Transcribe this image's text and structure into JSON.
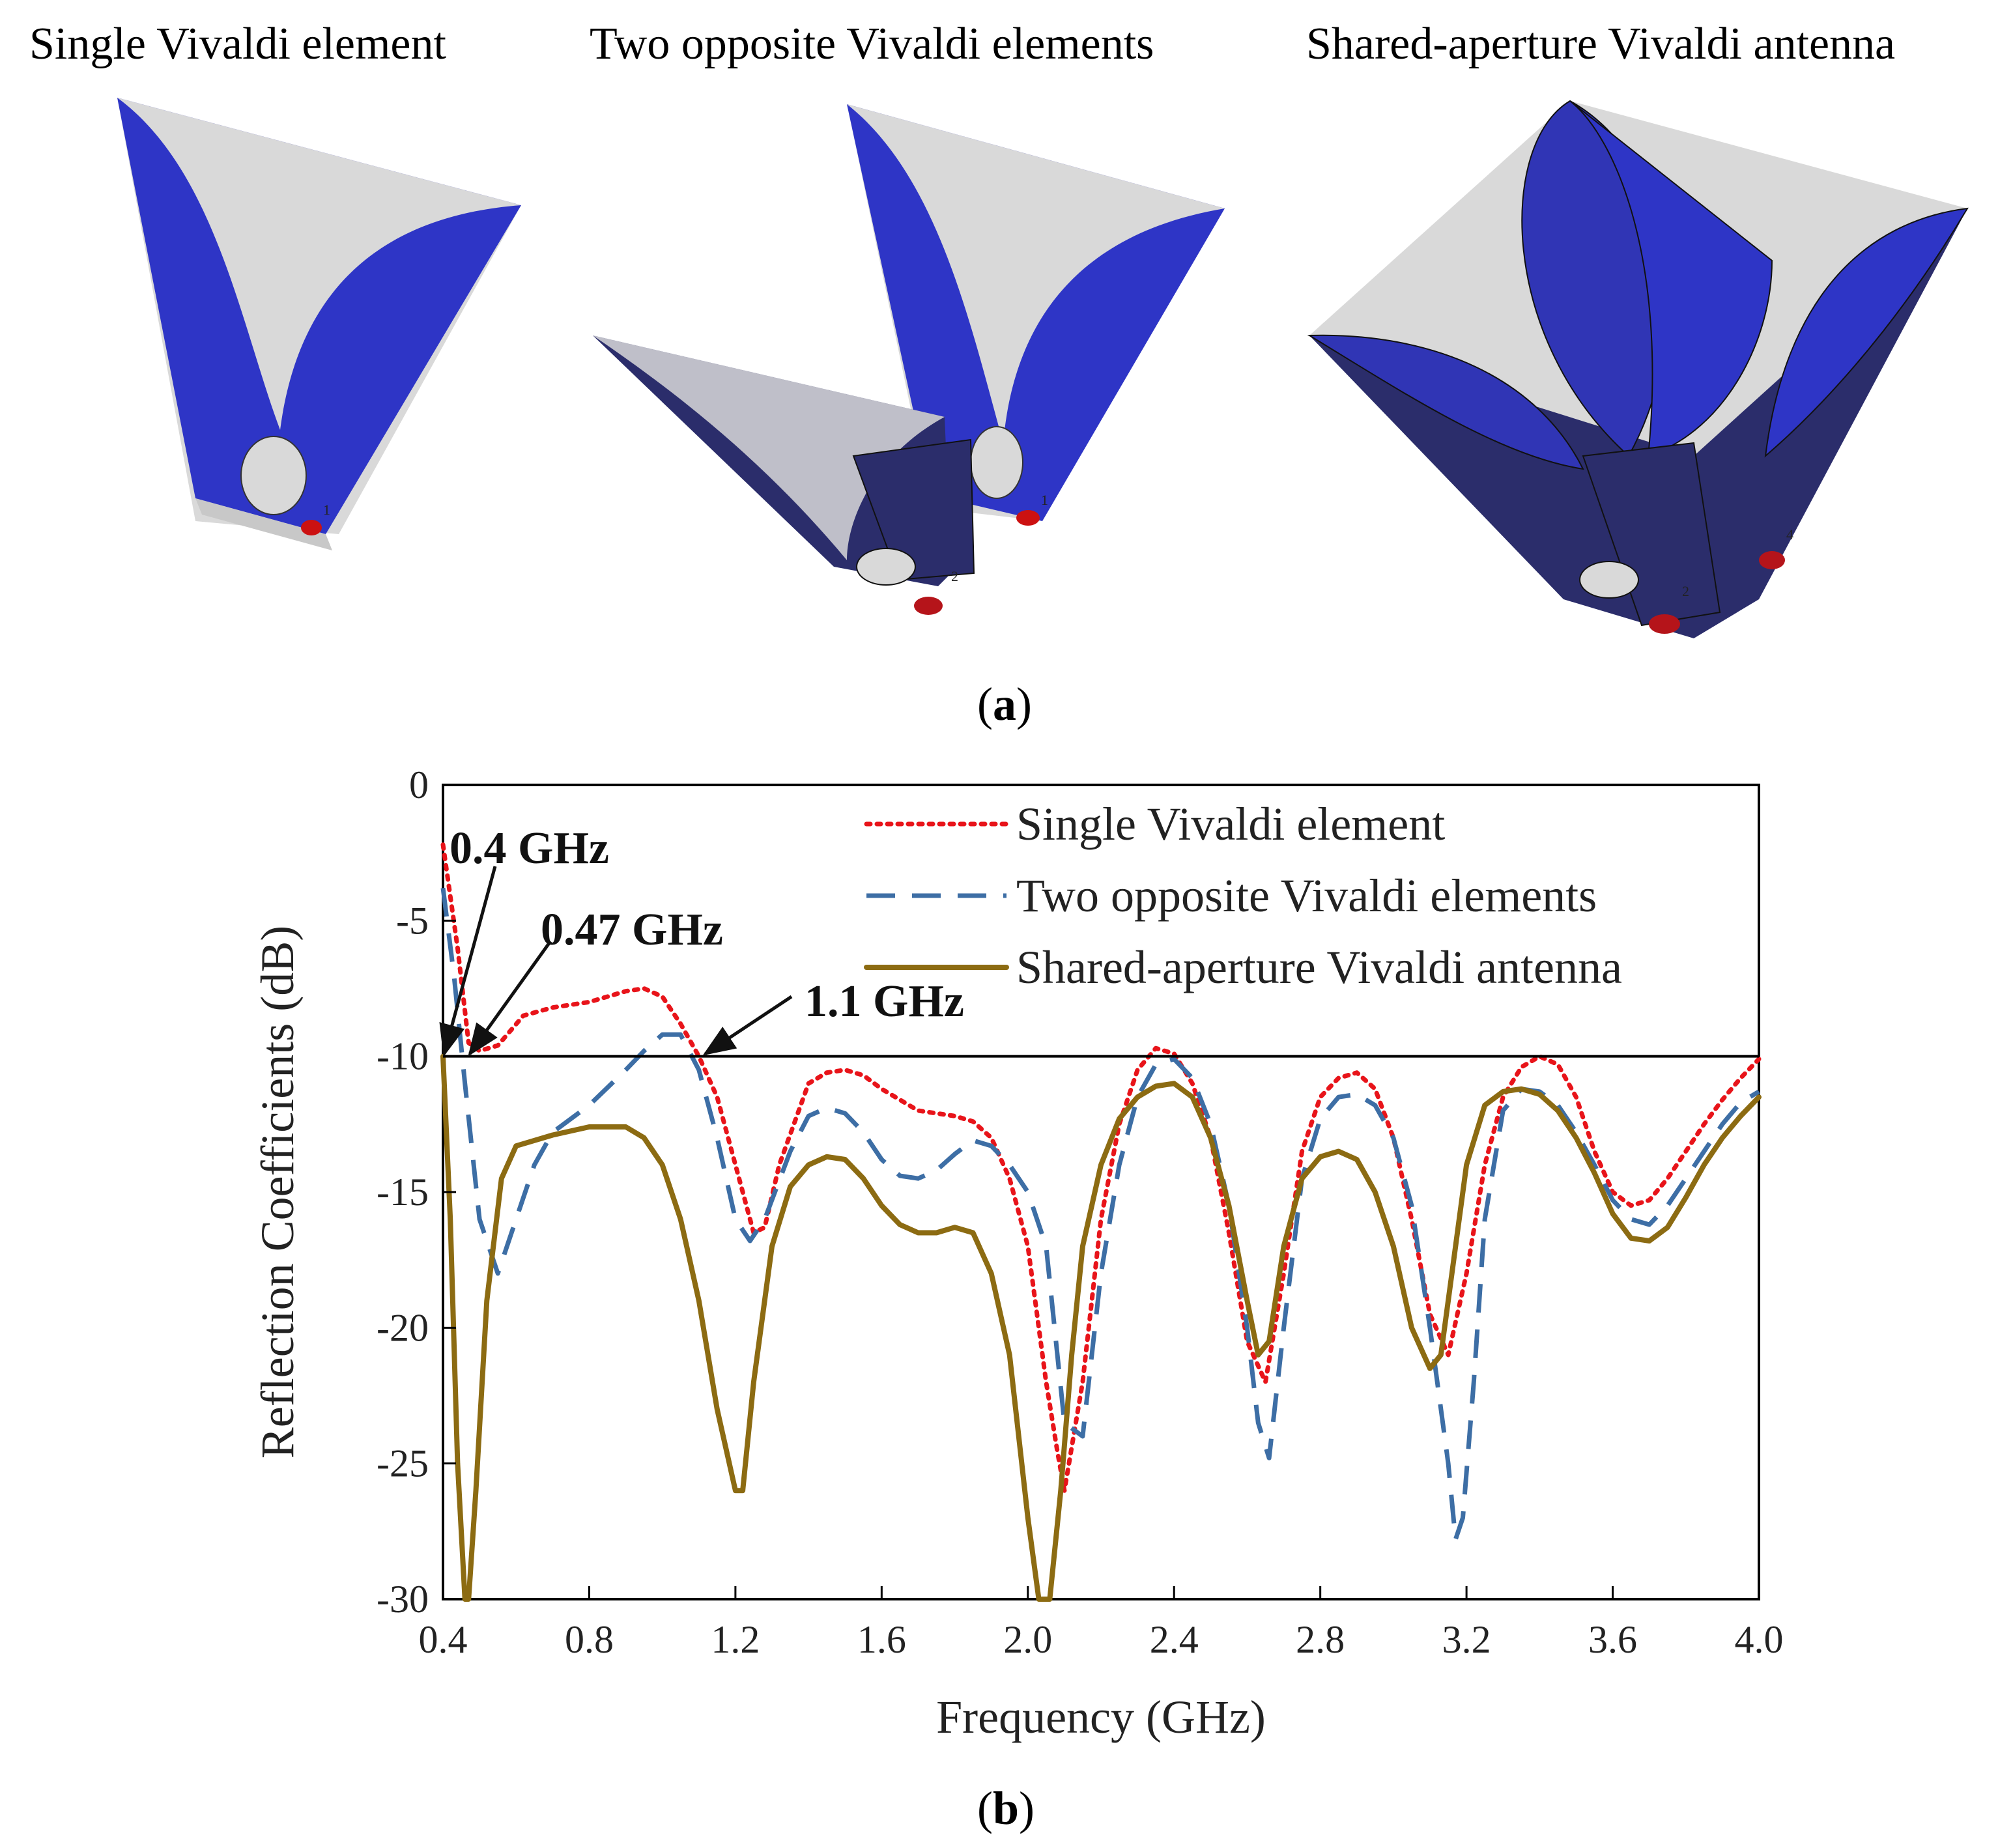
{
  "part_a": {
    "titles": [
      "Single Vivaldi element",
      "Two opposite Vivaldi elements",
      "Shared-aperture Vivaldi antenna"
    ],
    "caption": "a",
    "port_labels": [
      "1",
      "1",
      "2",
      "2",
      "4"
    ]
  },
  "part_b": {
    "caption": "b"
  },
  "chart_data": {
    "type": "line",
    "xlabel": "Frequency (GHz)",
    "ylabel": "Reflection Coefficients (dB)",
    "xlim": [
      0.4,
      4.0
    ],
    "ylim": [
      -30,
      0
    ],
    "xticks": [
      "0.4",
      "0.8",
      "1.2",
      "1.6",
      "2.0",
      "2.4",
      "2.8",
      "3.2",
      "3.6",
      "4.0"
    ],
    "yticks": [
      "0",
      "-5",
      "-10",
      "-15",
      "-20",
      "-25",
      "-30"
    ],
    "reference_line": -10,
    "legend_position": "top-right",
    "annotations": [
      {
        "text": "0.4 GHz",
        "x": 0.4,
        "y": -10
      },
      {
        "text": "0.47 GHz",
        "x": 0.47,
        "y": -10
      },
      {
        "text": "1.1 GHz",
        "x": 1.1,
        "y": -10
      }
    ],
    "series": [
      {
        "name": "Single Vivaldi element",
        "color": "#e8141a",
        "dash": "dot",
        "x": [
          0.4,
          0.44,
          0.47,
          0.5,
          0.55,
          0.62,
          0.7,
          0.8,
          0.9,
          0.95,
          1.0,
          1.05,
          1.1,
          1.15,
          1.2,
          1.25,
          1.28,
          1.32,
          1.4,
          1.45,
          1.5,
          1.55,
          1.6,
          1.7,
          1.8,
          1.85,
          1.9,
          1.95,
          2.0,
          2.05,
          2.08,
          2.1,
          2.15,
          2.2,
          2.25,
          2.3,
          2.35,
          2.4,
          2.45,
          2.5,
          2.55,
          2.6,
          2.65,
          2.7,
          2.75,
          2.8,
          2.85,
          2.9,
          2.95,
          3.0,
          3.05,
          3.1,
          3.15,
          3.2,
          3.25,
          3.3,
          3.35,
          3.4,
          3.45,
          3.5,
          3.55,
          3.6,
          3.65,
          3.7,
          3.75,
          3.8,
          3.85,
          3.9,
          3.95,
          4.0
        ],
        "y": [
          -2.2,
          -6,
          -9.5,
          -9.8,
          -9.6,
          -8.5,
          -8.2,
          -8,
          -7.6,
          -7.5,
          -7.8,
          -8.8,
          -10,
          -11.5,
          -14,
          -16.5,
          -16.3,
          -14,
          -11,
          -10.6,
          -10.5,
          -10.7,
          -11.2,
          -12,
          -12.2,
          -12.4,
          -13,
          -14.5,
          -17,
          -22,
          -24.5,
          -26,
          -22,
          -16,
          -12.5,
          -10.5,
          -9.7,
          -9.9,
          -11,
          -13,
          -16.5,
          -20.5,
          -22,
          -18,
          -13.5,
          -11.5,
          -10.8,
          -10.6,
          -11.2,
          -13,
          -16,
          -19.5,
          -21,
          -18,
          -14,
          -11.5,
          -10.4,
          -10,
          -10.3,
          -11.5,
          -13.5,
          -15,
          -15.5,
          -15.3,
          -14.5,
          -13.5,
          -12.5,
          -11.6,
          -10.8,
          -10.1
        ]
      },
      {
        "name": "Two opposite Vivaldi elements",
        "color": "#3d6ea5",
        "dash": "dash",
        "x": [
          0.4,
          0.43,
          0.46,
          0.5,
          0.55,
          0.6,
          0.65,
          0.7,
          0.8,
          0.9,
          0.95,
          1.0,
          1.05,
          1.1,
          1.15,
          1.2,
          1.24,
          1.28,
          1.35,
          1.4,
          1.45,
          1.5,
          1.55,
          1.6,
          1.65,
          1.7,
          1.75,
          1.8,
          1.85,
          1.9,
          1.95,
          2.0,
          2.05,
          2.1,
          2.15,
          2.2,
          2.25,
          2.3,
          2.35,
          2.4,
          2.45,
          2.5,
          2.55,
          2.6,
          2.63,
          2.66,
          2.7,
          2.75,
          2.8,
          2.85,
          2.9,
          2.95,
          3.0,
          3.05,
          3.1,
          3.15,
          3.17,
          3.19,
          3.22,
          3.25,
          3.3,
          3.35,
          3.4,
          3.45,
          3.5,
          3.55,
          3.6,
          3.65,
          3.7,
          3.75,
          3.8,
          3.85,
          3.9,
          3.95,
          4.0
        ],
        "y": [
          -3.8,
          -7,
          -11,
          -16,
          -18,
          -16,
          -14,
          -12.8,
          -11.8,
          -10.5,
          -9.8,
          -9.2,
          -9.2,
          -10.5,
          -13,
          -16,
          -16.8,
          -16,
          -13.5,
          -12.2,
          -11.9,
          -12.1,
          -12.8,
          -13.8,
          -14.4,
          -14.5,
          -14.2,
          -13.6,
          -13.1,
          -13.3,
          -14,
          -15,
          -17,
          -23.5,
          -24,
          -18,
          -14,
          -11.5,
          -10.3,
          -10.1,
          -10.8,
          -12.5,
          -15.5,
          -20,
          -23.5,
          -24.8,
          -20,
          -14.5,
          -12.3,
          -11.5,
          -11.4,
          -11.8,
          -13,
          -15.5,
          -20,
          -25,
          -27.8,
          -27,
          -22,
          -16,
          -12,
          -11.2,
          -11.3,
          -11.8,
          -12.8,
          -14,
          -15.3,
          -16,
          -16.2,
          -15.5,
          -14.5,
          -13.5,
          -12.5,
          -11.7,
          -11.3
        ]
      },
      {
        "name": "Shared-aperture Vivaldi antenna",
        "color": "#8c6b12",
        "dash": "solid",
        "x": [
          0.4,
          0.42,
          0.44,
          0.46,
          0.47,
          0.49,
          0.52,
          0.56,
          0.6,
          0.7,
          0.8,
          0.9,
          0.95,
          1.0,
          1.05,
          1.1,
          1.15,
          1.2,
          1.22,
          1.25,
          1.3,
          1.35,
          1.4,
          1.45,
          1.5,
          1.55,
          1.6,
          1.65,
          1.7,
          1.75,
          1.8,
          1.85,
          1.9,
          1.95,
          2.0,
          2.03,
          2.06,
          2.09,
          2.12,
          2.15,
          2.2,
          2.25,
          2.3,
          2.35,
          2.4,
          2.45,
          2.5,
          2.55,
          2.6,
          2.63,
          2.66,
          2.7,
          2.75,
          2.8,
          2.85,
          2.9,
          2.95,
          3.0,
          3.05,
          3.1,
          3.13,
          3.16,
          3.2,
          3.25,
          3.3,
          3.35,
          3.4,
          3.45,
          3.5,
          3.55,
          3.6,
          3.65,
          3.7,
          3.75,
          3.8,
          3.85,
          3.9,
          3.95,
          4.0
        ],
        "y": [
          -10,
          -16,
          -25,
          -30,
          -30,
          -26,
          -19,
          -14.5,
          -13.3,
          -12.9,
          -12.6,
          -12.6,
          -13,
          -14,
          -16,
          -19,
          -23,
          -26,
          -26,
          -22,
          -17,
          -14.8,
          -14,
          -13.7,
          -13.8,
          -14.5,
          -15.5,
          -16.2,
          -16.5,
          -16.5,
          -16.3,
          -16.5,
          -18,
          -21,
          -27,
          -30,
          -30,
          -26,
          -21,
          -17,
          -14,
          -12.3,
          -11.5,
          -11.1,
          -11,
          -11.5,
          -13,
          -15.5,
          -19,
          -21,
          -20.5,
          -17,
          -14.5,
          -13.7,
          -13.5,
          -13.8,
          -15,
          -17,
          -20,
          -21.5,
          -21,
          -18,
          -14,
          -11.8,
          -11.3,
          -11.2,
          -11.4,
          -12,
          -13,
          -14.3,
          -15.8,
          -16.7,
          -16.8,
          -16.3,
          -15.2,
          -14,
          -13,
          -12.2,
          -11.5
        ]
      }
    ]
  }
}
